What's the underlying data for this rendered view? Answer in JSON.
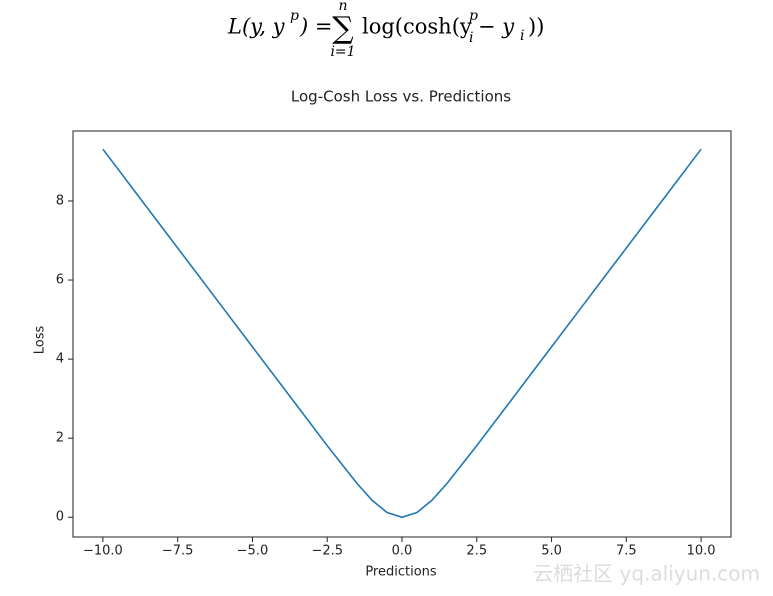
{
  "formula": {
    "lhs": "L(y, y",
    "lhs_sup": "p",
    "lhs_end": ") =",
    "sigma": "∑",
    "sum_top": "n",
    "sum_bottom": "i=1",
    "body": "log(cosh(y",
    "body_sup": "p",
    "body_sub": "i",
    "minus": "− y",
    "minus_sub": "i",
    "end": "))"
  },
  "chart_data": {
    "type": "line",
    "title": "Log-Cosh Loss vs. Predictions",
    "x_label": "Predictions",
    "y_label": "Loss",
    "x": [
      -10,
      -9,
      -8,
      -7,
      -6,
      -5,
      -4,
      -3,
      -2.5,
      -2,
      -1.5,
      -1,
      -0.5,
      0,
      0.5,
      1,
      1.5,
      2,
      2.5,
      3,
      4,
      5,
      6,
      7,
      8,
      9,
      10
    ],
    "series": [
      {
        "name": "Log-Cosh",
        "color": "#1f77b4",
        "values": [
          9.31,
          8.31,
          7.31,
          6.31,
          5.31,
          4.31,
          3.31,
          2.31,
          1.81,
          1.33,
          0.85,
          0.43,
          0.12,
          0,
          0.12,
          0.43,
          0.85,
          1.33,
          1.81,
          2.31,
          3.31,
          4.31,
          5.31,
          6.31,
          7.31,
          8.31,
          9.31
        ]
      }
    ],
    "xlim": [
      -11,
      11
    ],
    "ylim": [
      -0.5,
      9.77
    ],
    "xticks": [
      {
        "value": -10,
        "label": "−10.0"
      },
      {
        "value": -7.5,
        "label": "−7.5"
      },
      {
        "value": -5,
        "label": "−5.0"
      },
      {
        "value": -2.5,
        "label": "−2.5"
      },
      {
        "value": 0,
        "label": "0.0"
      },
      {
        "value": 2.5,
        "label": "2.5"
      },
      {
        "value": 5,
        "label": "5.0"
      },
      {
        "value": 7.5,
        "label": "7.5"
      },
      {
        "value": 10,
        "label": "10.0"
      }
    ],
    "yticks": [
      0,
      2,
      4,
      6,
      8
    ],
    "grid": false
  },
  "watermark": "云栖社区 yq.aliyun.com"
}
